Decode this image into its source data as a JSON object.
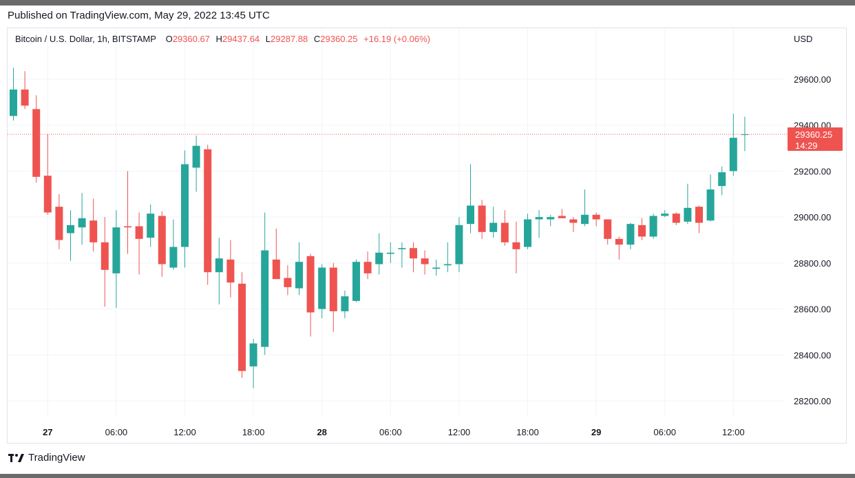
{
  "published": "Published on TradingView.com, May 29, 2022 13:45 UTC",
  "header": {
    "symbol": "Bitcoin / U.S. Dollar, 1h, BITSTAMP",
    "open_label": "O",
    "open": "29360.67",
    "high_label": "H",
    "high": "29437.64",
    "low_label": "L",
    "low": "29287.88",
    "close_label": "C",
    "close": "29360.25",
    "change": "+16.19 (+0.06%)"
  },
  "currency": "USD",
  "price_tag": {
    "price": "29360.25",
    "countdown": "14:29"
  },
  "brand": "TradingView",
  "colors": {
    "up": "#26a69a",
    "down": "#ef5350",
    "grid": "#f0f3fa",
    "text": "#131722"
  },
  "chart_data": {
    "type": "candlestick",
    "y_ticks": [
      "28200.00",
      "28400.00",
      "28600.00",
      "28800.00",
      "29000.00",
      "29200.00",
      "29400.00",
      "29600.00"
    ],
    "ylim": [
      28050,
      29800
    ],
    "x_ticks": [
      {
        "label": "27",
        "bold": true,
        "i": 3
      },
      {
        "label": "06:00",
        "bold": false,
        "i": 9
      },
      {
        "label": "12:00",
        "bold": false,
        "i": 15
      },
      {
        "label": "18:00",
        "bold": false,
        "i": 21
      },
      {
        "label": "28",
        "bold": true,
        "i": 27
      },
      {
        "label": "06:00",
        "bold": false,
        "i": 33
      },
      {
        "label": "12:00",
        "bold": false,
        "i": 39
      },
      {
        "label": "18:00",
        "bold": false,
        "i": 45
      },
      {
        "label": "29",
        "bold": true,
        "i": 51
      },
      {
        "label": "06:00",
        "bold": false,
        "i": 57
      },
      {
        "label": "12:00",
        "bold": false,
        "i": 63
      }
    ],
    "candles": [
      {
        "o": 29440,
        "h": 29650,
        "l": 29420,
        "c": 29555
      },
      {
        "o": 29555,
        "h": 29635,
        "l": 29470,
        "c": 29485
      },
      {
        "o": 29470,
        "h": 29530,
        "l": 29150,
        "c": 29175
      },
      {
        "o": 29180,
        "h": 29360,
        "l": 29010,
        "c": 29020
      },
      {
        "o": 29045,
        "h": 29100,
        "l": 28860,
        "c": 28900
      },
      {
        "o": 28930,
        "h": 29030,
        "l": 28810,
        "c": 28965
      },
      {
        "o": 28955,
        "h": 29105,
        "l": 28880,
        "c": 28995
      },
      {
        "o": 28985,
        "h": 29080,
        "l": 28850,
        "c": 28890
      },
      {
        "o": 28890,
        "h": 29000,
        "l": 28610,
        "c": 28770
      },
      {
        "o": 28755,
        "h": 29030,
        "l": 28605,
        "c": 28955
      },
      {
        "o": 28960,
        "h": 29200,
        "l": 28840,
        "c": 28955
      },
      {
        "o": 28960,
        "h": 29020,
        "l": 28750,
        "c": 28905
      },
      {
        "o": 28910,
        "h": 29055,
        "l": 28870,
        "c": 29015
      },
      {
        "o": 29005,
        "h": 29025,
        "l": 28740,
        "c": 28795
      },
      {
        "o": 28780,
        "h": 28990,
        "l": 28770,
        "c": 28870
      },
      {
        "o": 28870,
        "h": 29290,
        "l": 28780,
        "c": 29230
      },
      {
        "o": 29215,
        "h": 29355,
        "l": 29110,
        "c": 29310
      },
      {
        "o": 29295,
        "h": 29315,
        "l": 28705,
        "c": 28760
      },
      {
        "o": 28760,
        "h": 28910,
        "l": 28620,
        "c": 28820
      },
      {
        "o": 28815,
        "h": 28900,
        "l": 28650,
        "c": 28715
      },
      {
        "o": 28710,
        "h": 28760,
        "l": 28300,
        "c": 28330
      },
      {
        "o": 28350,
        "h": 28470,
        "l": 28255,
        "c": 28450
      },
      {
        "o": 28435,
        "h": 29020,
        "l": 28400,
        "c": 28855
      },
      {
        "o": 28815,
        "h": 28950,
        "l": 28730,
        "c": 28730
      },
      {
        "o": 28735,
        "h": 28790,
        "l": 28660,
        "c": 28695
      },
      {
        "o": 28690,
        "h": 28890,
        "l": 28660,
        "c": 28805
      },
      {
        "o": 28830,
        "h": 28840,
        "l": 28480,
        "c": 28585
      },
      {
        "o": 28600,
        "h": 28795,
        "l": 28560,
        "c": 28780
      },
      {
        "o": 28780,
        "h": 28800,
        "l": 28500,
        "c": 28590
      },
      {
        "o": 28590,
        "h": 28680,
        "l": 28560,
        "c": 28655
      },
      {
        "o": 28635,
        "h": 28815,
        "l": 28630,
        "c": 28805
      },
      {
        "o": 28805,
        "h": 28850,
        "l": 28730,
        "c": 28755
      },
      {
        "o": 28795,
        "h": 28930,
        "l": 28750,
        "c": 28845
      },
      {
        "o": 28840,
        "h": 28890,
        "l": 28800,
        "c": 28845
      },
      {
        "o": 28860,
        "h": 28890,
        "l": 28780,
        "c": 28865
      },
      {
        "o": 28865,
        "h": 28890,
        "l": 28760,
        "c": 28820
      },
      {
        "o": 28820,
        "h": 28855,
        "l": 28750,
        "c": 28795
      },
      {
        "o": 28775,
        "h": 28815,
        "l": 28745,
        "c": 28780
      },
      {
        "o": 28790,
        "h": 28890,
        "l": 28760,
        "c": 28795
      },
      {
        "o": 28795,
        "h": 29000,
        "l": 28760,
        "c": 28965
      },
      {
        "o": 28970,
        "h": 29230,
        "l": 28930,
        "c": 29050
      },
      {
        "o": 29050,
        "h": 29075,
        "l": 28905,
        "c": 28935
      },
      {
        "o": 28935,
        "h": 29045,
        "l": 28910,
        "c": 28975
      },
      {
        "o": 28975,
        "h": 29030,
        "l": 28875,
        "c": 28890
      },
      {
        "o": 28890,
        "h": 28980,
        "l": 28755,
        "c": 28860
      },
      {
        "o": 28870,
        "h": 29015,
        "l": 28860,
        "c": 28990
      },
      {
        "o": 28990,
        "h": 29030,
        "l": 28910,
        "c": 29000
      },
      {
        "o": 28990,
        "h": 29010,
        "l": 28960,
        "c": 29000
      },
      {
        "o": 29005,
        "h": 29035,
        "l": 28995,
        "c": 28995
      },
      {
        "o": 28990,
        "h": 29000,
        "l": 28935,
        "c": 28975
      },
      {
        "o": 28970,
        "h": 29120,
        "l": 28960,
        "c": 29010
      },
      {
        "o": 29010,
        "h": 29020,
        "l": 28960,
        "c": 28990
      },
      {
        "o": 28990,
        "h": 28990,
        "l": 28880,
        "c": 28905
      },
      {
        "o": 28905,
        "h": 28915,
        "l": 28815,
        "c": 28880
      },
      {
        "o": 28880,
        "h": 28975,
        "l": 28860,
        "c": 28970
      },
      {
        "o": 28965,
        "h": 28995,
        "l": 28900,
        "c": 28915
      },
      {
        "o": 28915,
        "h": 29015,
        "l": 28905,
        "c": 29005
      },
      {
        "o": 29005,
        "h": 29030,
        "l": 29000,
        "c": 29015
      },
      {
        "o": 29015,
        "h": 29020,
        "l": 28965,
        "c": 28975
      },
      {
        "o": 28980,
        "h": 29145,
        "l": 28970,
        "c": 29040
      },
      {
        "o": 29045,
        "h": 29050,
        "l": 28930,
        "c": 28975
      },
      {
        "o": 28985,
        "h": 29185,
        "l": 28980,
        "c": 29120
      },
      {
        "o": 29135,
        "h": 29220,
        "l": 29095,
        "c": 29195
      },
      {
        "o": 29200,
        "h": 29450,
        "l": 29180,
        "c": 29345
      },
      {
        "o": 29360,
        "h": 29437,
        "l": 29287,
        "c": 29360
      }
    ]
  }
}
